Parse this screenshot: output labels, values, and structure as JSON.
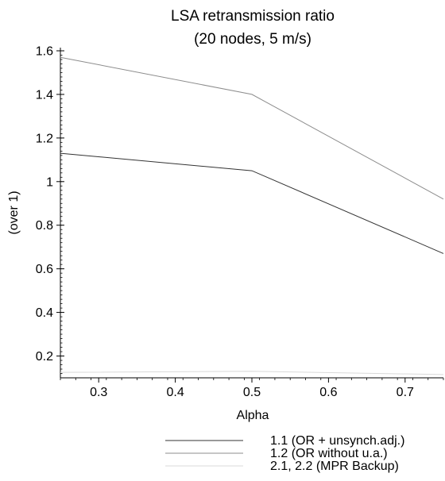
{
  "chart_data": {
    "type": "line",
    "title": "LSA retransmission ratio",
    "subtitle": "(20 nodes, 5 m/s)",
    "xlabel": "Alpha",
    "ylabel": "(over 1)",
    "xlim": [
      0.25,
      0.75
    ],
    "ylim": [
      0.1,
      1.6
    ],
    "x_ticks": [
      0.3,
      0.4,
      0.5,
      0.6,
      0.7
    ],
    "x_tick_labels": [
      "0.3",
      "0.4",
      "0.5",
      "0.6",
      "0.7"
    ],
    "y_ticks": [
      0.2,
      0.4,
      0.6,
      0.8,
      1.0,
      1.2,
      1.4,
      1.6
    ],
    "y_tick_labels": [
      "0.2",
      "0.4",
      "0.6",
      "0.8",
      "1",
      "1.2",
      "1.4",
      "1.6"
    ],
    "grid": false,
    "legend_position": "bottom",
    "x": [
      0.25,
      0.5,
      0.75
    ],
    "series": [
      {
        "name": "1.1 (OR + unsynch.adj.)",
        "color": "#333333",
        "values": [
          1.13,
          1.05,
          0.67
        ]
      },
      {
        "name": "1.2 (OR without u.a.)",
        "color": "#8c8c8c",
        "values": [
          1.57,
          1.4,
          0.92
        ]
      },
      {
        "name": "2.1, 2.2 (MPR Backup)",
        "color": "#d9d9d9",
        "values": [
          0.125,
          0.13,
          0.115
        ]
      }
    ]
  }
}
